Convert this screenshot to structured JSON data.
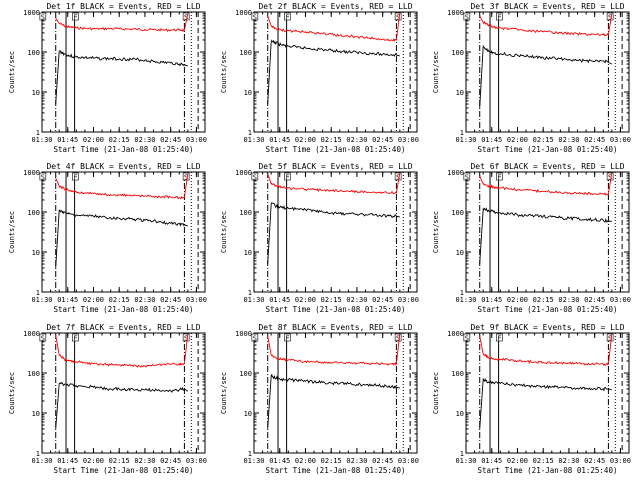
{
  "chart_data": {
    "type": "line",
    "grid": false,
    "common": {
      "ylabel": "Counts/sec",
      "xlabel": "Start Time (21-Jan-08 01:25:40)",
      "yscale": "log",
      "ylim": [
        1,
        1000
      ],
      "ytick_values": [
        1,
        10,
        100,
        1000
      ],
      "ytick_labels": [
        "1",
        "10",
        "100",
        "1000"
      ],
      "xlim_minutes": [
        90,
        185
      ],
      "xtick_minutes": [
        90,
        105,
        120,
        135,
        150,
        165,
        180
      ],
      "xtick_labels": [
        "01:30",
        "01:45",
        "02:00",
        "02:15",
        "02:30",
        "02:45",
        "03:00"
      ],
      "series_colors": {
        "events": "#000000",
        "lld": "#ff0000"
      },
      "markers": [
        {
          "label": "S",
          "minute": 90.5
        },
        {
          "label": "F",
          "minute": 109.5
        },
        {
          "label": "S",
          "minute": 174
        }
      ],
      "vlines_minutes": {
        "dashdot": [
          98,
          173
        ],
        "solid": [
          104,
          109
        ],
        "dotted": [
          177
        ],
        "dashed": [
          181
        ]
      },
      "time_minutes": [
        98,
        100,
        103,
        106,
        110,
        115,
        120,
        125,
        130,
        135,
        140,
        145,
        150,
        155,
        160,
        165,
        170,
        173,
        175
      ]
    },
    "panels": [
      {
        "title": "Det 1f BLACK = Events, RED = LLD",
        "events": [
          5,
          105,
          90,
          80,
          75,
          72,
          70,
          68,
          68,
          67,
          66,
          65,
          62,
          58,
          55,
          53,
          50,
          48,
          45
        ],
        "lld": [
          700,
          520,
          450,
          420,
          400,
          390,
          380,
          380,
          385,
          380,
          375,
          370,
          365,
          360,
          355,
          355,
          355,
          350,
          900
        ]
      },
      {
        "title": "Det 2f BLACK = Events, RED = LLD",
        "events": [
          5,
          180,
          170,
          150,
          140,
          130,
          125,
          120,
          115,
          110,
          105,
          100,
          98,
          95,
          90,
          88,
          86,
          84,
          80
        ],
        "lld": [
          800,
          450,
          380,
          350,
          340,
          330,
          320,
          300,
          290,
          280,
          260,
          250,
          240,
          230,
          220,
          210,
          200,
          200,
          950
        ]
      },
      {
        "title": "Det 3f BLACK = Events, RED = LLD",
        "events": [
          4,
          140,
          110,
          95,
          90,
          85,
          82,
          78,
          75,
          72,
          70,
          68,
          65,
          62,
          60,
          58,
          60,
          55,
          50
        ],
        "lld": [
          800,
          550,
          480,
          420,
          400,
          380,
          360,
          340,
          330,
          320,
          310,
          300,
          290,
          285,
          280,
          275,
          270,
          270,
          900
        ]
      },
      {
        "title": "Det 4f BLACK = Events, RED = LLD",
        "events": [
          4,
          110,
          100,
          90,
          85,
          80,
          78,
          75,
          72,
          70,
          68,
          65,
          62,
          60,
          55,
          52,
          50,
          48,
          45
        ],
        "lld": [
          700,
          450,
          380,
          340,
          320,
          300,
          290,
          280,
          270,
          265,
          260,
          255,
          250,
          245,
          240,
          235,
          230,
          230,
          900
        ]
      },
      {
        "title": "Det 5f BLACK = Events, RED = LLD",
        "events": [
          5,
          160,
          140,
          130,
          125,
          120,
          115,
          110,
          100,
          95,
          92,
          90,
          88,
          86,
          84,
          82,
          80,
          78,
          75
        ],
        "lld": [
          900,
          500,
          460,
          420,
          400,
          380,
          370,
          360,
          350,
          340,
          335,
          330,
          325,
          320,
          315,
          310,
          300,
          300,
          950
        ]
      },
      {
        "title": "Det 6f BLACK = Events, RED = LLD",
        "events": [
          5,
          120,
          110,
          100,
          95,
          90,
          85,
          82,
          80,
          78,
          75,
          72,
          70,
          68,
          66,
          64,
          62,
          60,
          58
        ],
        "lld": [
          800,
          500,
          450,
          420,
          400,
          380,
          360,
          350,
          340,
          330,
          320,
          310,
          300,
          295,
          290,
          285,
          280,
          280,
          950
        ]
      },
      {
        "title": "Det 7f BLACK = Events, RED = LLD",
        "events": [
          4,
          55,
          52,
          50,
          48,
          46,
          44,
          42,
          40,
          40,
          39,
          38,
          38,
          37,
          36,
          36,
          38,
          40,
          35
        ],
        "lld": [
          900,
          280,
          220,
          200,
          190,
          180,
          170,
          165,
          160,
          160,
          155,
          150,
          150,
          155,
          160,
          165,
          170,
          170,
          950
        ]
      },
      {
        "title": "Det 8f BLACK = Events, RED = LLD",
        "events": [
          4,
          85,
          75,
          70,
          68,
          65,
          62,
          60,
          58,
          56,
          55,
          54,
          52,
          50,
          50,
          48,
          45,
          44,
          42
        ],
        "lld": [
          850,
          280,
          240,
          220,
          210,
          200,
          195,
          190,
          185,
          180,
          180,
          178,
          176,
          175,
          172,
          170,
          170,
          170,
          950
        ]
      },
      {
        "title": "Det 9f BLACK = Events, RED = LLD",
        "events": [
          4,
          70,
          60,
          58,
          55,
          52,
          50,
          48,
          47,
          46,
          45,
          44,
          43,
          42,
          42,
          41,
          40,
          40,
          38
        ],
        "lld": [
          850,
          300,
          250,
          230,
          220,
          210,
          200,
          195,
          190,
          185,
          180,
          178,
          175,
          172,
          170,
          168,
          165,
          165,
          950
        ]
      }
    ]
  }
}
